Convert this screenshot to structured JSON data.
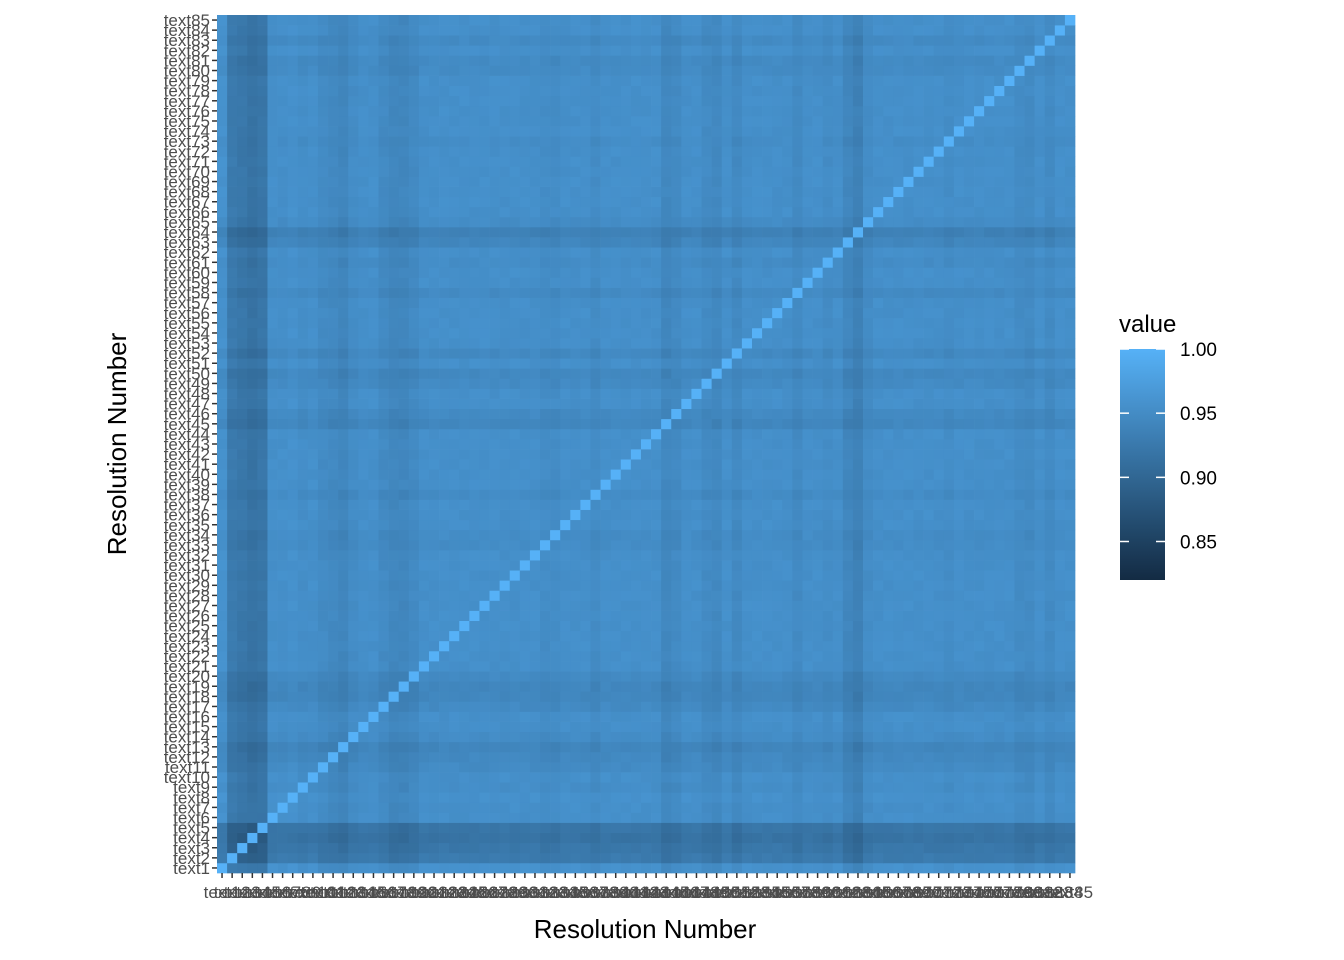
{
  "chart_data": {
    "type": "heatmap",
    "title": "",
    "xlabel": "Resolution Number",
    "ylabel": "Resolution Number",
    "n": 85,
    "label_prefix": "text",
    "value_range": [
      0.82,
      1.0
    ],
    "diagonal_value": 1.0,
    "baseline_value": 0.955,
    "row_col_effects": {
      "1": 0.003,
      "2": -0.028,
      "3": -0.033,
      "4": -0.038,
      "5": -0.034,
      "6": 0.0,
      "8": 0.002,
      "9": -0.002,
      "11": -0.006,
      "12": -0.009,
      "13": -0.013,
      "14": -0.004,
      "17": -0.007,
      "18": -0.012,
      "19": -0.012,
      "20": -0.007,
      "33": -0.004,
      "34": -0.004,
      "38": -0.005,
      "45": -0.011,
      "46": -0.007,
      "49": -0.006,
      "50": -0.009,
      "52": -0.008,
      "58": -0.007,
      "61": -0.004,
      "63": -0.012,
      "64": -0.019,
      "65": -0.004,
      "73": -0.003,
      "80": -0.005,
      "81": -0.006,
      "83": -0.006
    },
    "legend": {
      "title": "value",
      "breaks": [
        0.85,
        0.9,
        0.95,
        1.0
      ],
      "labels": [
        "0.85",
        "0.90",
        "0.95",
        "1.00"
      ],
      "position": "right"
    },
    "colors": {
      "low": "#132B43",
      "high": "#56B1F7"
    }
  }
}
